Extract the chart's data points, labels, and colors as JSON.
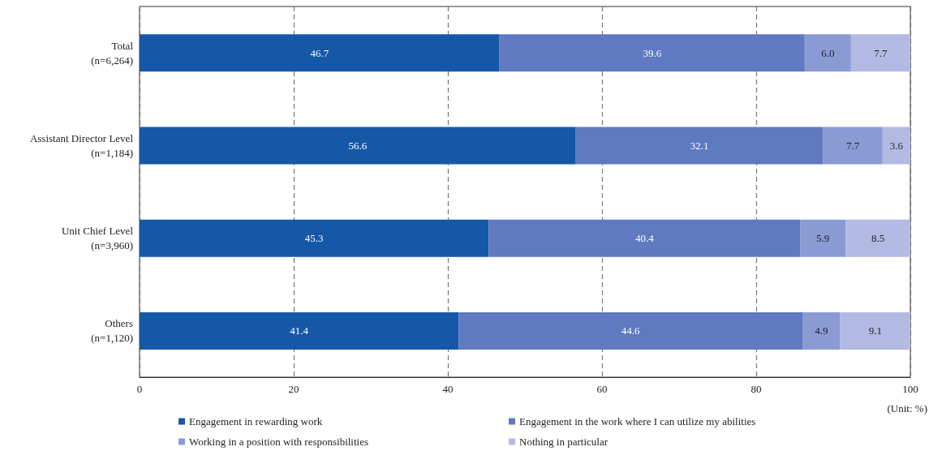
{
  "chart_data": {
    "type": "bar",
    "orientation": "horizontal",
    "stacked": true,
    "categories": [
      "Total\n(n=6,264)",
      "Assistant Director Level\n(n=1,184)",
      "Unit Chief Level\n(n=3,960)",
      "Others\n(n=1,120)"
    ],
    "series": [
      {
        "name": "Engagement in rewarding work",
        "color": "#1558a8",
        "values": [
          46.7,
          56.6,
          45.3,
          41.4
        ],
        "value_labels": [
          "46.7",
          "56.6",
          "45.3",
          "41.4"
        ]
      },
      {
        "name": "Engagement in the work where I can utilize my abilities",
        "color": "#5f7ac0",
        "values": [
          39.6,
          32.1,
          40.4,
          44.6
        ],
        "value_labels": [
          "39.6",
          "32.1",
          "40.4",
          "44.6"
        ]
      },
      {
        "name": "Working in a position with responsibilities",
        "color": "#8a9bd4",
        "values": [
          6.0,
          7.7,
          5.9,
          4.9
        ],
        "value_labels": [
          "6.0",
          "7.7",
          "5.9",
          "4.9"
        ]
      },
      {
        "name": "Nothing in particular",
        "color": "#b2b9e2",
        "values": [
          7.7,
          3.6,
          8.5,
          9.1
        ],
        "value_labels": [
          "7.7",
          "3.6",
          "8.5",
          "9.1"
        ]
      }
    ],
    "xlim": [
      0,
      100
    ],
    "xticks": [
      0,
      20,
      40,
      60,
      80,
      100
    ],
    "grid": "x",
    "legend": "bottom",
    "annotations": [
      "(Unit: %)"
    ]
  }
}
